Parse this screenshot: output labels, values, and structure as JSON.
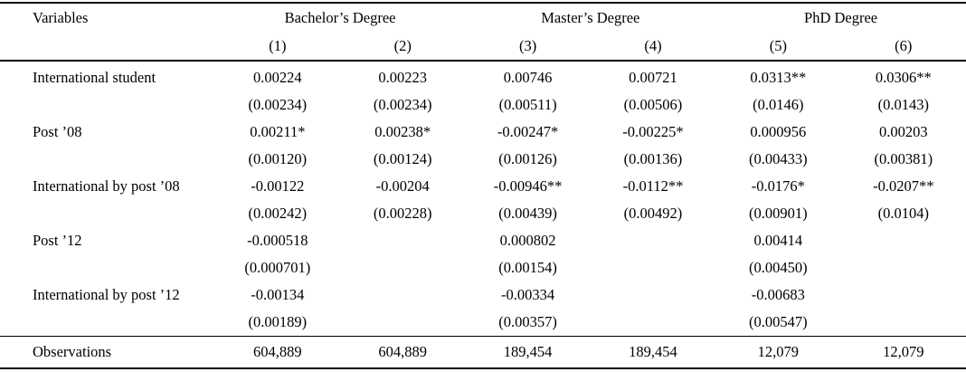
{
  "table": {
    "header": {
      "variables_label": "Variables",
      "groups": [
        {
          "label": "Bachelor’s Degree",
          "cols": [
            "(1)",
            "(2)"
          ]
        },
        {
          "label": "Master’s Degree",
          "cols": [
            "(3)",
            "(4)"
          ]
        },
        {
          "label": "PhD Degree",
          "cols": [
            "(5)",
            "(6)"
          ]
        }
      ]
    },
    "rows": [
      {
        "label": "International student",
        "coefs": [
          "0.00224",
          "0.00223",
          "0.00746",
          "0.00721",
          "0.0313**",
          "0.0306**"
        ],
        "ses": [
          "(0.00234)",
          "(0.00234)",
          "(0.00511)",
          "(0.00506)",
          "(0.0146)",
          "(0.0143)"
        ]
      },
      {
        "label": "Post ’08",
        "coefs": [
          "0.00211*",
          "0.00238*",
          "-0.00247*",
          "-0.00225*",
          "0.000956",
          "0.00203"
        ],
        "ses": [
          "(0.00120)",
          "(0.00124)",
          "(0.00126)",
          "(0.00136)",
          "(0.00433)",
          "(0.00381)"
        ]
      },
      {
        "label": "International by post ’08",
        "coefs": [
          "-0.00122",
          "-0.00204",
          "-0.00946**",
          "-0.0112**",
          "-0.0176*",
          "-0.0207**"
        ],
        "ses": [
          "(0.00242)",
          "(0.00228)",
          "(0.00439)",
          "(0.00492)",
          "(0.00901)",
          "(0.0104)"
        ]
      },
      {
        "label": "Post ’12",
        "coefs": [
          "-0.000518",
          "",
          "0.000802",
          "",
          "0.00414",
          ""
        ],
        "ses": [
          "(0.000701)",
          "",
          "(0.00154)",
          "",
          "(0.00450)",
          ""
        ]
      },
      {
        "label": "International by post ’12",
        "coefs": [
          "-0.00134",
          "",
          "-0.00334",
          "",
          "-0.00683",
          ""
        ],
        "ses": [
          "(0.00189)",
          "",
          "(0.00357)",
          "",
          "(0.00547)",
          ""
        ]
      }
    ],
    "footer": {
      "label": "Observations",
      "values": [
        "604,889",
        "604,889",
        "189,454",
        "189,454",
        "12,079",
        "12,079"
      ]
    }
  }
}
